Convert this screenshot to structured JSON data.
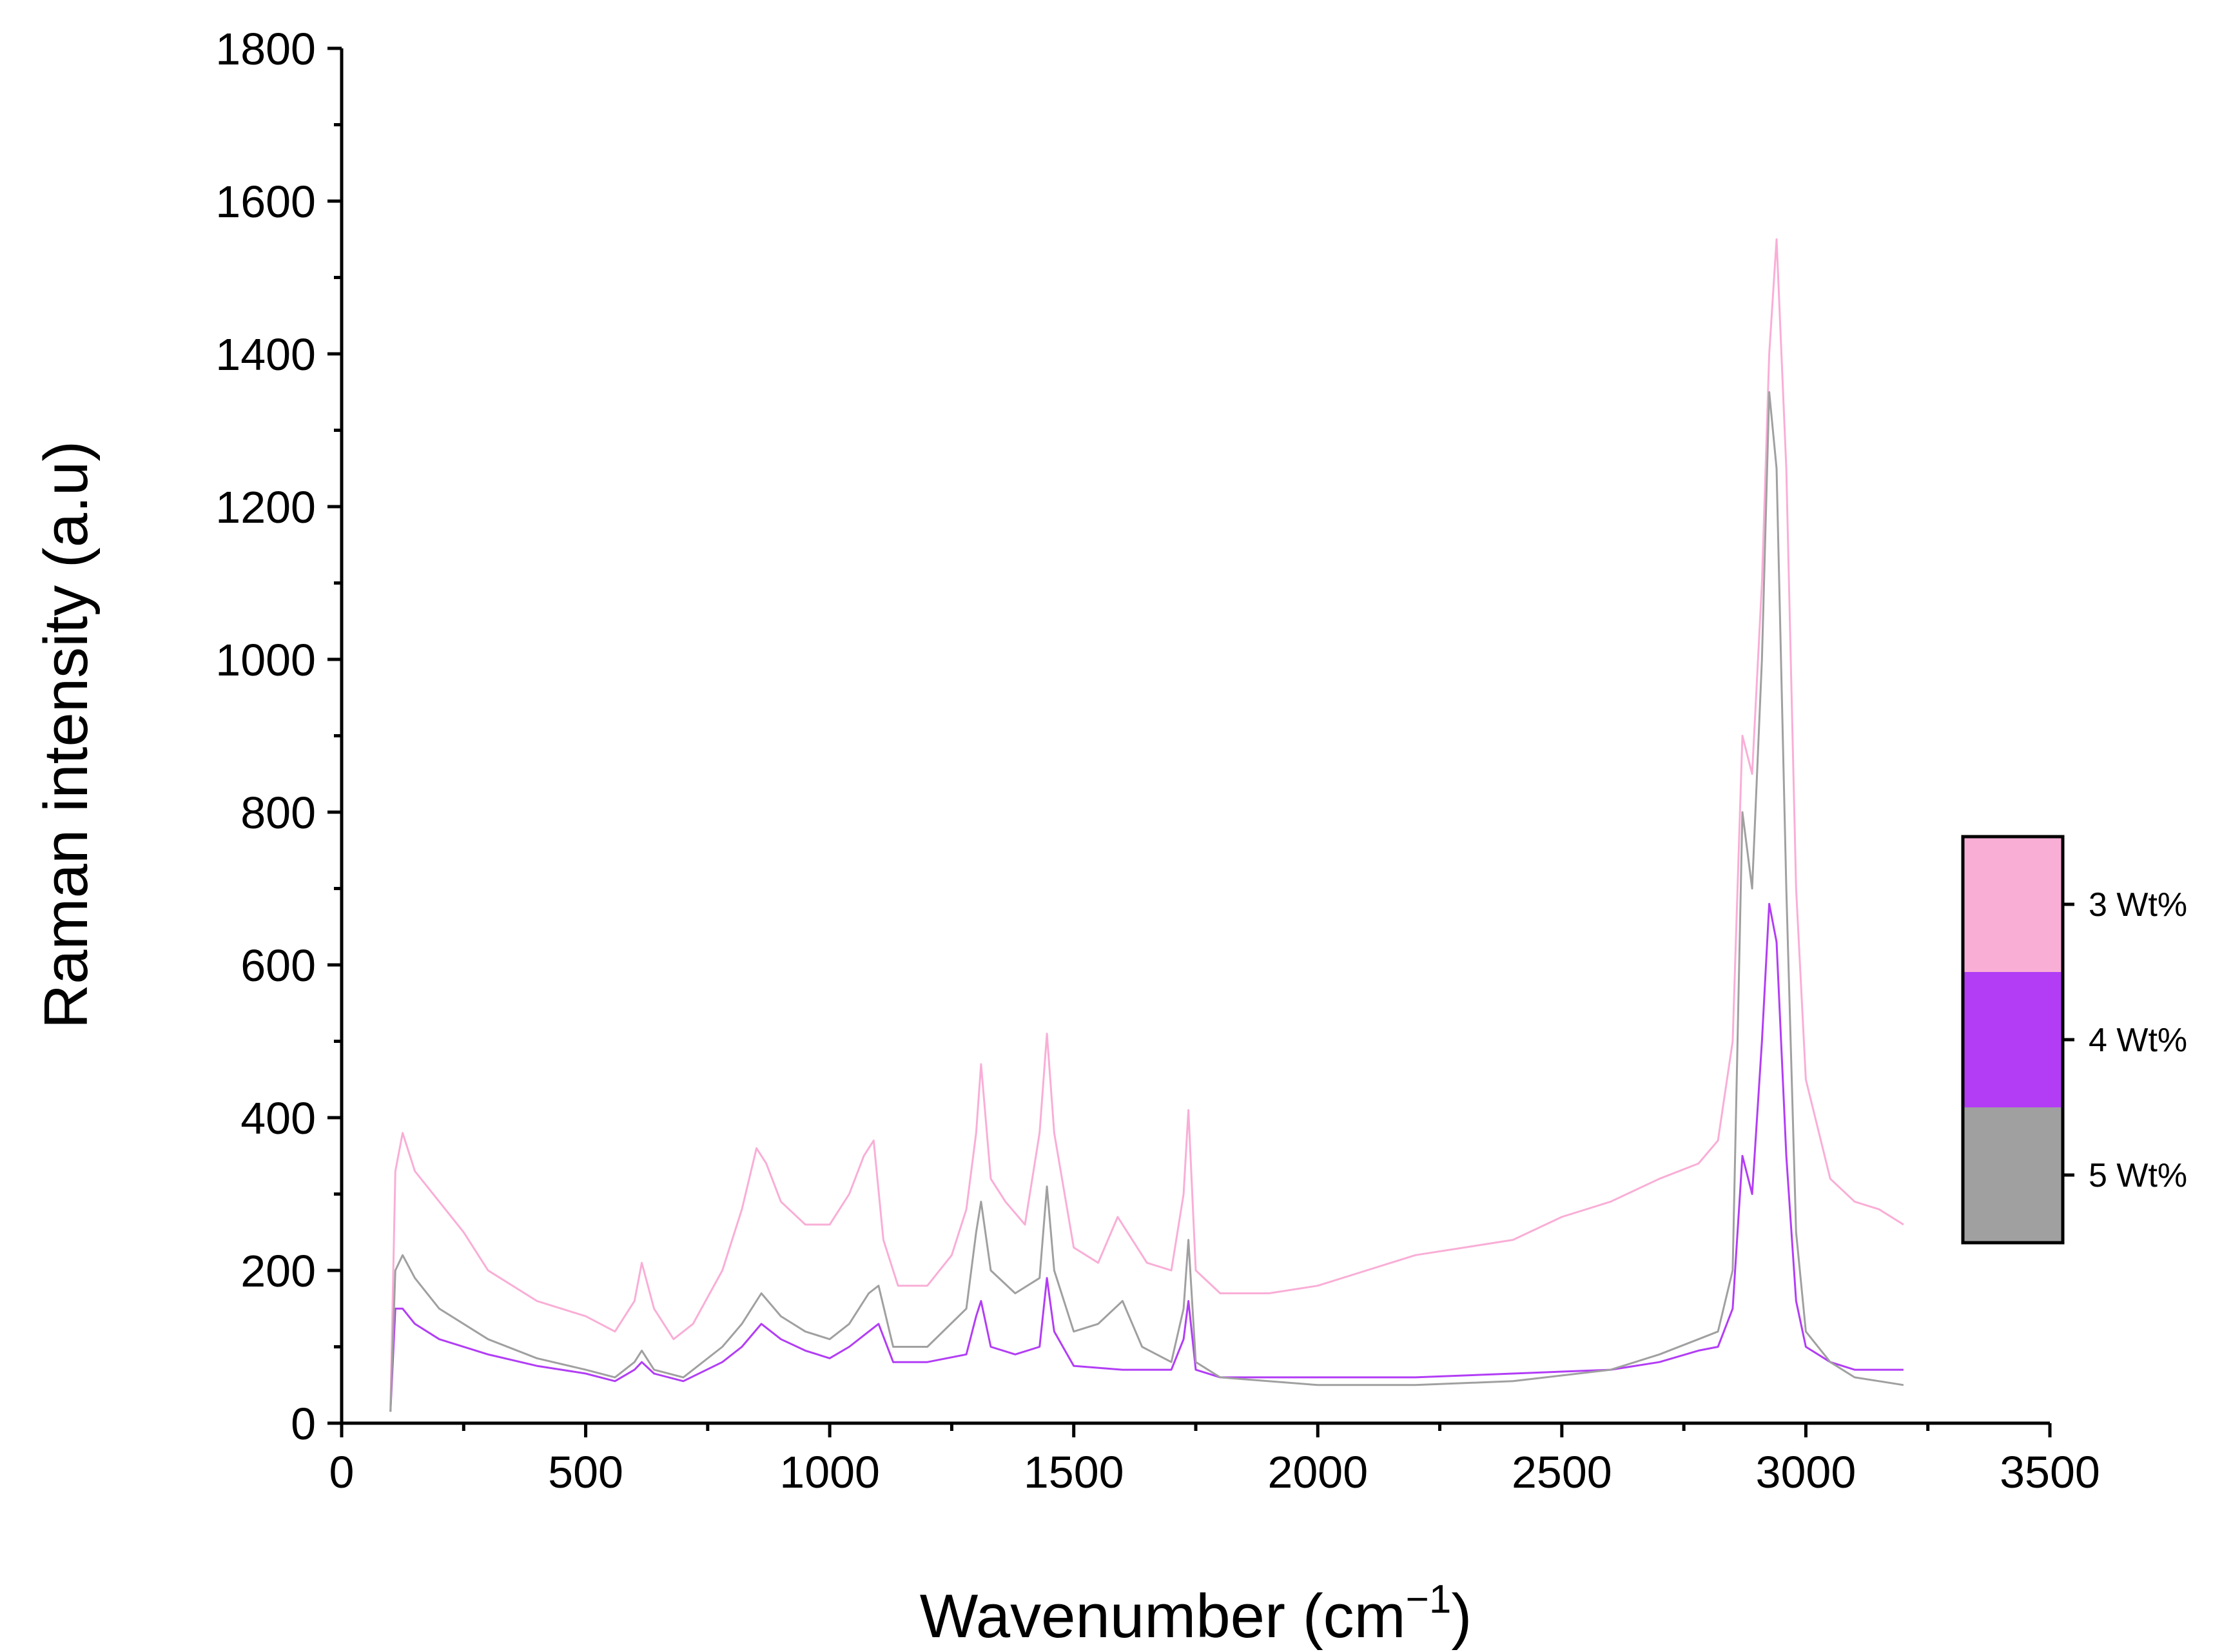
{
  "chart_data": {
    "type": "line",
    "title": "",
    "xlabel": "Wavenumber (cm",
    "xlabel_sup": "−1",
    "xlabel_close": ")",
    "ylabel": "Raman intensity (a.u)",
    "xlim": [
      0,
      3500
    ],
    "ylim": [
      0,
      1800
    ],
    "x_ticks": [
      0,
      500,
      1000,
      1500,
      2000,
      2500,
      3000,
      3500
    ],
    "y_ticks": [
      0,
      200,
      400,
      600,
      800,
      1000,
      1200,
      1400,
      1600,
      1800
    ],
    "x_tick_labels": [
      "0",
      "500",
      "1000",
      "1500",
      "2000",
      "2500",
      "3000",
      "3500"
    ],
    "y_tick_labels": [
      "0",
      "200",
      "400",
      "600",
      "800",
      "1000",
      "1200",
      "1400",
      "1600",
      "1800"
    ],
    "grid": false,
    "legend_position": "right",
    "series": [
      {
        "name": "3 Wt%",
        "color": "#f9aed6",
        "x": [
          100,
          110,
          125,
          150,
          200,
          250,
          300,
          400,
          500,
          560,
          600,
          615,
          640,
          680,
          720,
          780,
          820,
          850,
          870,
          900,
          950,
          1000,
          1040,
          1070,
          1090,
          1110,
          1140,
          1200,
          1250,
          1280,
          1300,
          1310,
          1330,
          1360,
          1400,
          1430,
          1445,
          1460,
          1500,
          1550,
          1590,
          1610,
          1650,
          1700,
          1725,
          1735,
          1750,
          1800,
          1900,
          2000,
          2100,
          2200,
          2300,
          2400,
          2500,
          2600,
          2700,
          2780,
          2820,
          2850,
          2870,
          2890,
          2910,
          2925,
          2940,
          2960,
          2980,
          3000,
          3050,
          3100,
          3150,
          3200
        ],
        "values": [
          20,
          330,
          380,
          330,
          290,
          250,
          200,
          160,
          140,
          120,
          160,
          210,
          150,
          110,
          130,
          200,
          280,
          360,
          340,
          290,
          260,
          260,
          300,
          350,
          370,
          240,
          180,
          180,
          220,
          280,
          380,
          470,
          320,
          290,
          260,
          380,
          510,
          380,
          230,
          210,
          270,
          250,
          210,
          200,
          300,
          410,
          200,
          170,
          170,
          180,
          200,
          220,
          230,
          240,
          270,
          290,
          320,
          340,
          370,
          500,
          900,
          850,
          1100,
          1400,
          1550,
          1250,
          700,
          450,
          320,
          290,
          280,
          260
        ]
      },
      {
        "name": "4 Wt%",
        "color": "#b23df5",
        "x": [
          100,
          110,
          125,
          150,
          200,
          300,
          400,
          500,
          560,
          600,
          615,
          640,
          700,
          780,
          820,
          860,
          900,
          950,
          1000,
          1040,
          1080,
          1100,
          1130,
          1200,
          1280,
          1300,
          1310,
          1330,
          1380,
          1430,
          1445,
          1460,
          1500,
          1600,
          1700,
          1725,
          1735,
          1750,
          1800,
          2000,
          2200,
          2400,
          2600,
          2700,
          2780,
          2820,
          2850,
          2870,
          2890,
          2910,
          2925,
          2940,
          2960,
          2980,
          3000,
          3050,
          3100,
          3150,
          3200
        ],
        "values": [
          15,
          150,
          150,
          130,
          110,
          90,
          75,
          65,
          55,
          70,
          80,
          65,
          55,
          80,
          100,
          130,
          110,
          95,
          85,
          100,
          120,
          130,
          80,
          80,
          90,
          140,
          160,
          100,
          90,
          100,
          190,
          120,
          75,
          70,
          70,
          110,
          160,
          70,
          60,
          60,
          60,
          65,
          70,
          80,
          95,
          100,
          150,
          350,
          300,
          500,
          680,
          630,
          350,
          160,
          100,
          80,
          70,
          70,
          70
        ]
      },
      {
        "name": "5 Wt%",
        "color": "#a0a0a0",
        "x": [
          100,
          110,
          125,
          150,
          200,
          300,
          400,
          500,
          560,
          600,
          615,
          640,
          700,
          780,
          820,
          860,
          900,
          950,
          1000,
          1040,
          1080,
          1100,
          1130,
          1200,
          1280,
          1300,
          1310,
          1330,
          1380,
          1430,
          1445,
          1460,
          1500,
          1550,
          1600,
          1640,
          1700,
          1725,
          1735,
          1750,
          1800,
          2000,
          2200,
          2400,
          2600,
          2700,
          2780,
          2820,
          2850,
          2870,
          2890,
          2910,
          2925,
          2940,
          2960,
          2980,
          3000,
          3050,
          3100,
          3150,
          3200
        ],
        "values": [
          15,
          200,
          220,
          190,
          150,
          110,
          85,
          70,
          60,
          80,
          95,
          70,
          60,
          100,
          130,
          170,
          140,
          120,
          110,
          130,
          170,
          180,
          100,
          100,
          150,
          250,
          290,
          200,
          170,
          190,
          310,
          200,
          120,
          130,
          160,
          100,
          80,
          150,
          240,
          80,
          60,
          50,
          50,
          55,
          70,
          90,
          110,
          120,
          200,
          800,
          700,
          1000,
          1350,
          1250,
          700,
          250,
          120,
          80,
          60,
          55,
          50
        ]
      }
    ]
  }
}
